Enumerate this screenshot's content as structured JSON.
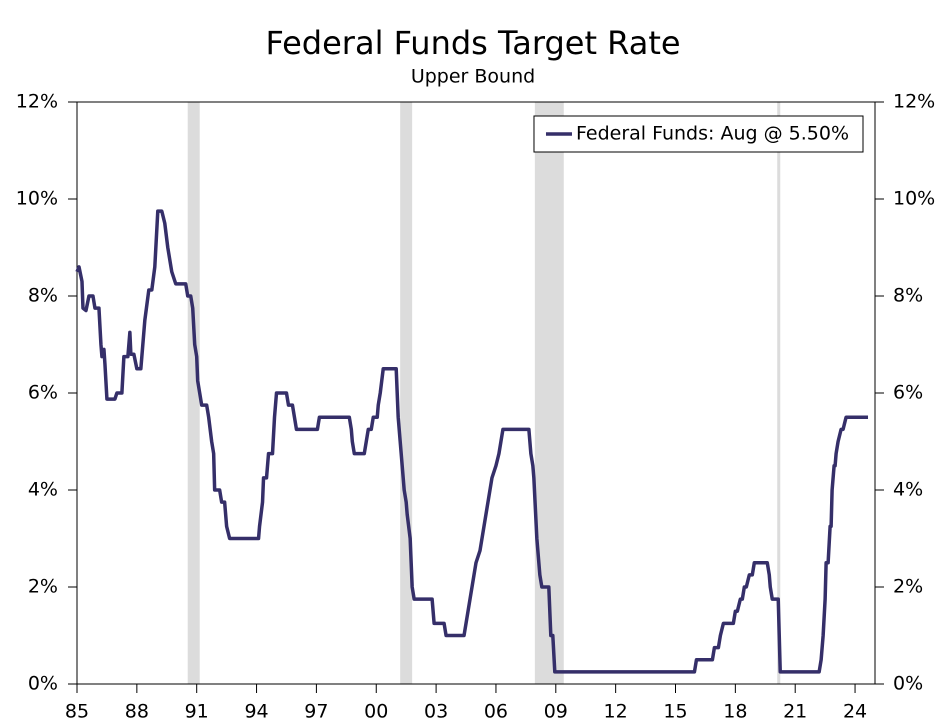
{
  "chart_data": {
    "type": "line",
    "title": "Federal Funds Target Rate",
    "subtitle": "Upper Bound",
    "x": [
      1985.0,
      1985.1,
      1985.25,
      1985.3,
      1985.45,
      1985.6,
      1985.8,
      1985.9,
      1986.1,
      1986.2,
      1986.25,
      1986.35,
      1986.4,
      1986.5,
      1986.9,
      1987.0,
      1987.25,
      1987.35,
      1987.55,
      1987.65,
      1987.7,
      1987.85,
      1988.0,
      1988.2,
      1988.4,
      1988.6,
      1988.75,
      1988.9,
      1989.05,
      1989.25,
      1989.4,
      1989.55,
      1989.75,
      1989.95,
      1990.45,
      1990.55,
      1990.7,
      1990.8,
      1990.9,
      1991.0,
      1991.05,
      1991.15,
      1991.25,
      1991.5,
      1991.6,
      1991.75,
      1991.85,
      1991.9,
      1992.15,
      1992.25,
      1992.4,
      1992.5,
      1992.65,
      1994.1,
      1994.15,
      1994.3,
      1994.35,
      1994.5,
      1994.6,
      1994.8,
      1994.9,
      1995.0,
      1995.5,
      1995.6,
      1995.8,
      1995.9,
      1996.0,
      1997.05,
      1997.15,
      1998.65,
      1998.75,
      1998.8,
      1998.9,
      1999.4,
      1999.5,
      1999.6,
      1999.75,
      1999.85,
      2000.05,
      2000.1,
      2000.2,
      2000.35,
      2001.0,
      2001.05,
      2001.1,
      2001.2,
      2001.3,
      2001.4,
      2001.5,
      2001.55,
      2001.7,
      2001.75,
      2001.8,
      2001.9,
      2002.8,
      2002.9,
      2003.4,
      2003.5,
      2004.4,
      2004.5,
      2004.6,
      2004.7,
      2004.8,
      2005.0,
      2005.2,
      2005.4,
      2005.6,
      2005.8,
      2006.0,
      2006.15,
      2006.25,
      2006.35,
      2007.65,
      2007.75,
      2007.85,
      2007.9,
      2008.05,
      2008.2,
      2008.3,
      2008.65,
      2008.75,
      2008.85,
      2008.95,
      2015.95,
      2016.05,
      2016.85,
      2016.95,
      2017.15,
      2017.25,
      2017.4,
      2017.9,
      2018.0,
      2018.1,
      2018.25,
      2018.35,
      2018.45,
      2018.55,
      2018.7,
      2018.85,
      2018.95,
      2019.6,
      2019.7,
      2019.75,
      2019.85,
      2020.15,
      2020.25,
      2022.2,
      2022.3,
      2022.4,
      2022.5,
      2022.55,
      2022.65,
      2022.75,
      2022.8,
      2022.85,
      2022.95,
      2023.0,
      2023.05,
      2023.15,
      2023.3,
      2023.4,
      2023.55,
      2024.65
    ],
    "series": [
      {
        "name": "Federal Funds: Aug @ 5.50%",
        "color": "#352f69",
        "values": [
          8.5,
          8.6,
          8.3,
          7.75,
          7.7,
          8.0,
          8.0,
          7.75,
          7.75,
          7.0,
          6.75,
          6.9,
          6.6,
          5.875,
          5.875,
          6.0,
          6.0,
          6.75,
          6.75,
          7.25,
          6.8,
          6.8,
          6.5,
          6.5,
          7.5,
          8.125,
          8.125,
          8.6,
          9.75,
          9.75,
          9.5,
          9.0,
          8.5,
          8.25,
          8.25,
          8.0,
          8.0,
          7.75,
          7.0,
          6.75,
          6.25,
          6.0,
          5.75,
          5.75,
          5.5,
          5.0,
          4.75,
          4.0,
          4.0,
          3.75,
          3.75,
          3.25,
          3.0,
          3.0,
          3.25,
          3.75,
          4.25,
          4.25,
          4.75,
          4.75,
          5.5,
          6.0,
          6.0,
          5.75,
          5.75,
          5.5,
          5.25,
          5.25,
          5.5,
          5.5,
          5.25,
          5.0,
          4.75,
          4.75,
          5.0,
          5.25,
          5.25,
          5.5,
          5.5,
          5.75,
          6.0,
          6.5,
          6.5,
          6.0,
          5.5,
          5.0,
          4.5,
          4.0,
          3.75,
          3.5,
          3.0,
          2.5,
          2.0,
          1.75,
          1.75,
          1.25,
          1.25,
          1.0,
          1.0,
          1.25,
          1.5,
          1.75,
          2.0,
          2.5,
          2.75,
          3.25,
          3.75,
          4.25,
          4.5,
          4.75,
          5.0,
          5.25,
          5.25,
          4.75,
          4.5,
          4.25,
          3.0,
          2.25,
          2.0,
          2.0,
          1.0,
          1.0,
          0.25,
          0.25,
          0.5,
          0.5,
          0.75,
          0.75,
          1.0,
          1.25,
          1.25,
          1.5,
          1.5,
          1.75,
          1.75,
          2.0,
          2.0,
          2.25,
          2.25,
          2.5,
          2.5,
          2.25,
          2.0,
          1.75,
          1.75,
          0.25,
          0.25,
          0.5,
          1.0,
          1.75,
          2.5,
          2.5,
          3.25,
          3.25,
          4.0,
          4.5,
          4.5,
          4.75,
          5.0,
          5.25,
          5.25,
          5.5,
          5.5
        ]
      }
    ],
    "recessions": [
      {
        "start": 1990.55,
        "end": 1991.15,
        "color": "#dcdcdc"
      },
      {
        "start": 2001.2,
        "end": 2001.8,
        "color": "#dcdcdc"
      },
      {
        "start": 2007.95,
        "end": 2009.4,
        "color": "#dcdcdc"
      },
      {
        "start": 2020.1,
        "end": 2020.25,
        "color": "#dcdcdc"
      }
    ],
    "xlim": [
      1985,
      2025
    ],
    "xticks": [
      {
        "value": 1985,
        "label": "85"
      },
      {
        "value": 1988,
        "label": "88"
      },
      {
        "value": 1991,
        "label": "91"
      },
      {
        "value": 1994,
        "label": "94"
      },
      {
        "value": 1997,
        "label": "97"
      },
      {
        "value": 2000,
        "label": "00"
      },
      {
        "value": 2003,
        "label": "03"
      },
      {
        "value": 2006,
        "label": "06"
      },
      {
        "value": 2009,
        "label": "09"
      },
      {
        "value": 2012,
        "label": "12"
      },
      {
        "value": 2015,
        "label": "15"
      },
      {
        "value": 2018,
        "label": "18"
      },
      {
        "value": 2021,
        "label": "21"
      },
      {
        "value": 2024,
        "label": "24"
      }
    ],
    "ylim": [
      0,
      12
    ],
    "yticks": [
      {
        "value": 0,
        "label": "0%"
      },
      {
        "value": 2,
        "label": "2%"
      },
      {
        "value": 4,
        "label": "4%"
      },
      {
        "value": 6,
        "label": "6%"
      },
      {
        "value": 8,
        "label": "8%"
      },
      {
        "value": 10,
        "label": "10%"
      },
      {
        "value": 12,
        "label": "12%"
      }
    ],
    "y2lim": [
      0,
      12
    ],
    "y2ticks": [
      {
        "value": 0,
        "label": "0%"
      },
      {
        "value": 2,
        "label": "2%"
      },
      {
        "value": 4,
        "label": "4%"
      },
      {
        "value": 6,
        "label": "6%"
      },
      {
        "value": 8,
        "label": "8%"
      },
      {
        "value": 10,
        "label": "10%"
      },
      {
        "value": 12,
        "label": "12%"
      }
    ],
    "legend": "upper right",
    "grid": false
  }
}
